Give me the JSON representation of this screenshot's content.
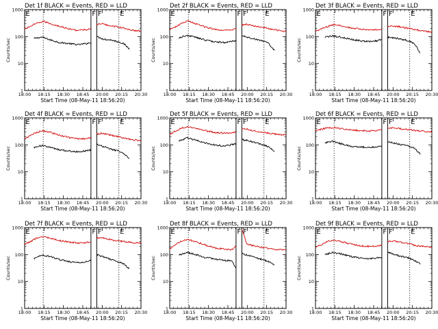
{
  "colors": {
    "events": "#000000",
    "lld": "#d20000",
    "axes": "#000000",
    "background": "#ffffff"
  },
  "chart_data": [
    {
      "type": "line",
      "title": "Det 1f BLACK = Events, RED = LLD",
      "xlabel": "Start Time (08-May-11 18:56:20)",
      "ylabel": "Counts/sec",
      "x_ticks": [
        "18:00",
        "18:15",
        "18:30",
        "18:45",
        "20:00",
        "20:15",
        "20:30"
      ],
      "y_ticks": [
        "1",
        "10",
        "100",
        "1000"
      ],
      "ylim": [
        1,
        1000
      ],
      "y_scale": "log",
      "markers": [
        {
          "label": "E",
          "x": 0.0
        },
        {
          "label": "F",
          "x": 0.57
        },
        {
          "label": "F",
          "x": 0.62
        },
        {
          "label": "E",
          "x": 0.81
        }
      ],
      "gaps": [
        0.57,
        0.62
      ],
      "series": [
        {
          "name": "Events",
          "color": "#000000",
          "x": [
            0.08,
            0.15,
            0.22,
            0.3,
            0.38,
            0.46,
            0.53,
            0.57,
            0.62,
            0.68,
            0.74,
            0.8,
            0.85,
            0.9
          ],
          "values": [
            85,
            95,
            75,
            60,
            55,
            50,
            55,
            60,
            100,
            80,
            75,
            65,
            55,
            35
          ]
        },
        {
          "name": "LLD",
          "color": "#d20000",
          "x": [
            0.0,
            0.05,
            0.1,
            0.16,
            0.22,
            0.3,
            0.38,
            0.46,
            0.53,
            0.57,
            0.62,
            0.66,
            0.72,
            0.8,
            0.88,
            0.95,
            1.0
          ],
          "values": [
            190,
            240,
            300,
            370,
            300,
            240,
            190,
            170,
            180,
            200,
            280,
            300,
            260,
            230,
            190,
            165,
            160
          ]
        }
      ]
    },
    {
      "type": "line",
      "title": "Det 2f BLACK = Events, RED = LLD",
      "xlabel": "Start Time (08-May-11 18:56:20)",
      "ylabel": "Counts/sec",
      "x_ticks": [
        "18:00",
        "18:15",
        "18:30",
        "18:45",
        "20:00",
        "20:15",
        "20:30"
      ],
      "y_ticks": [
        "1",
        "10",
        "100",
        "1000"
      ],
      "ylim": [
        1,
        1000
      ],
      "y_scale": "log",
      "markers": [
        {
          "label": "E",
          "x": 0.0
        },
        {
          "label": "F",
          "x": 0.57
        },
        {
          "label": "F",
          "x": 0.62
        },
        {
          "label": "E",
          "x": 0.81
        }
      ],
      "gaps": [
        0.57,
        0.62
      ],
      "series": [
        {
          "name": "Events",
          "color": "#000000",
          "x": [
            0.08,
            0.15,
            0.22,
            0.3,
            0.38,
            0.46,
            0.53,
            0.57,
            0.62,
            0.68,
            0.74,
            0.8,
            0.85,
            0.9
          ],
          "values": [
            90,
            110,
            95,
            75,
            65,
            60,
            65,
            70,
            110,
            90,
            80,
            70,
            55,
            30
          ]
        },
        {
          "name": "LLD",
          "color": "#d20000",
          "x": [
            0.0,
            0.05,
            0.1,
            0.16,
            0.22,
            0.3,
            0.38,
            0.46,
            0.53,
            0.57,
            0.62,
            0.66,
            0.72,
            0.8,
            0.88,
            0.95,
            1.0
          ],
          "values": [
            180,
            230,
            300,
            380,
            300,
            230,
            190,
            170,
            175,
            190,
            270,
            290,
            250,
            220,
            185,
            165,
            155
          ]
        }
      ]
    },
    {
      "type": "line",
      "title": "Det 3f BLACK = Events, RED = LLD",
      "xlabel": "Start Time (08-May-11 18:56:20)",
      "ylabel": "Counts/sec",
      "x_ticks": [
        "18:00",
        "18:15",
        "18:30",
        "18:45",
        "20:00",
        "20:15",
        "20:30"
      ],
      "y_ticks": [
        "1",
        "10",
        "100",
        "1000"
      ],
      "ylim": [
        1,
        1000
      ],
      "y_scale": "log",
      "markers": [
        {
          "label": "E",
          "x": 0.0
        },
        {
          "label": "F",
          "x": 0.57
        },
        {
          "label": "F",
          "x": 0.62
        },
        {
          "label": "E",
          "x": 0.81
        }
      ],
      "gaps": [
        0.57,
        0.62
      ],
      "series": [
        {
          "name": "Events",
          "color": "#000000",
          "x": [
            0.08,
            0.15,
            0.22,
            0.3,
            0.38,
            0.46,
            0.53,
            0.57,
            0.62,
            0.68,
            0.74,
            0.8,
            0.85,
            0.9
          ],
          "values": [
            95,
            105,
            95,
            80,
            70,
            65,
            70,
            80,
            95,
            90,
            80,
            70,
            55,
            25
          ]
        },
        {
          "name": "LLD",
          "color": "#d20000",
          "x": [
            0.0,
            0.05,
            0.1,
            0.16,
            0.22,
            0.3,
            0.38,
            0.46,
            0.53,
            0.57,
            0.62,
            0.66,
            0.72,
            0.8,
            0.88,
            0.95,
            1.0
          ],
          "values": [
            160,
            190,
            230,
            280,
            250,
            210,
            190,
            175,
            180,
            190,
            230,
            250,
            230,
            200,
            175,
            155,
            150
          ]
        }
      ]
    },
    {
      "type": "line",
      "title": "Det 4f BLACK = Events, RED = LLD",
      "xlabel": "Start Time (08-May-11 18:56:20)",
      "ylabel": "Counts/sec",
      "x_ticks": [
        "18:00",
        "18:15",
        "18:30",
        "18:45",
        "20:00",
        "20:15",
        "20:30"
      ],
      "y_ticks": [
        "1",
        "10",
        "100",
        "1000"
      ],
      "ylim": [
        1,
        1000
      ],
      "y_scale": "log",
      "markers": [
        {
          "label": "E",
          "x": 0.0
        },
        {
          "label": "F",
          "x": 0.57
        },
        {
          "label": "F",
          "x": 0.62
        },
        {
          "label": "E",
          "x": 0.81
        }
      ],
      "gaps": [
        0.57,
        0.62
      ],
      "series": [
        {
          "name": "Events",
          "color": "#000000",
          "x": [
            0.08,
            0.15,
            0.22,
            0.3,
            0.38,
            0.46,
            0.53,
            0.57,
            0.62,
            0.68,
            0.74,
            0.8,
            0.85,
            0.9
          ],
          "values": [
            80,
            95,
            80,
            65,
            60,
            55,
            60,
            65,
            105,
            85,
            70,
            60,
            50,
            30
          ]
        },
        {
          "name": "LLD",
          "color": "#d20000",
          "x": [
            0.0,
            0.05,
            0.1,
            0.16,
            0.22,
            0.3,
            0.38,
            0.46,
            0.53,
            0.57,
            0.62,
            0.66,
            0.72,
            0.8,
            0.88,
            0.95,
            1.0
          ],
          "values": [
            170,
            220,
            290,
            330,
            290,
            230,
            185,
            165,
            170,
            185,
            250,
            270,
            240,
            200,
            170,
            150,
            140
          ]
        }
      ]
    },
    {
      "type": "line",
      "title": "Det 5f BLACK = Events, RED = LLD",
      "xlabel": "Start Time (08-May-11 18:56:20)",
      "ylabel": "Counts/sec",
      "x_ticks": [
        "18:00",
        "18:15",
        "18:30",
        "18:45",
        "20:00",
        "20:15",
        "20:30"
      ],
      "y_ticks": [
        "1",
        "10",
        "100",
        "1000"
      ],
      "ylim": [
        1,
        1000
      ],
      "y_scale": "log",
      "markers": [
        {
          "label": "E",
          "x": 0.0
        },
        {
          "label": "F",
          "x": 0.57
        },
        {
          "label": "F",
          "x": 0.62
        },
        {
          "label": "E",
          "x": 0.81
        }
      ],
      "gaps": [
        0.57,
        0.62
      ],
      "series": [
        {
          "name": "Events",
          "color": "#000000",
          "x": [
            0.08,
            0.15,
            0.22,
            0.3,
            0.38,
            0.46,
            0.53,
            0.57,
            0.62,
            0.68,
            0.74,
            0.8,
            0.85,
            0.9
          ],
          "values": [
            140,
            180,
            150,
            120,
            100,
            90,
            100,
            110,
            160,
            140,
            120,
            100,
            85,
            55
          ]
        },
        {
          "name": "LLD",
          "color": "#d20000",
          "x": [
            0.0,
            0.05,
            0.1,
            0.16,
            0.22,
            0.3,
            0.38,
            0.46,
            0.53,
            0.57,
            0.62,
            0.66,
            0.72,
            0.8,
            0.88,
            0.95,
            1.0
          ],
          "values": [
            250,
            320,
            420,
            480,
            420,
            340,
            290,
            270,
            280,
            300,
            380,
            390,
            330,
            290,
            260,
            240,
            230
          ]
        }
      ]
    },
    {
      "type": "line",
      "title": "Det 6f BLACK = Events, RED = LLD",
      "xlabel": "Start Time (08-May-11 18:56:20)",
      "ylabel": "Counts/sec",
      "x_ticks": [
        "18:00",
        "18:15",
        "18:30",
        "18:45",
        "20:00",
        "20:15",
        "20:30"
      ],
      "y_ticks": [
        "1",
        "10",
        "100",
        "1000"
      ],
      "ylim": [
        1,
        1000
      ],
      "y_scale": "log",
      "markers": [
        {
          "label": "E",
          "x": 0.0
        },
        {
          "label": "F",
          "x": 0.57
        },
        {
          "label": "F",
          "x": 0.62
        },
        {
          "label": "E",
          "x": 0.81
        }
      ],
      "gaps": [
        0.57,
        0.62
      ],
      "series": [
        {
          "name": "Events",
          "color": "#000000",
          "x": [
            0.08,
            0.15,
            0.22,
            0.3,
            0.38,
            0.46,
            0.53,
            0.57,
            0.62,
            0.68,
            0.74,
            0.8,
            0.85,
            0.9
          ],
          "values": [
            120,
            135,
            110,
            90,
            85,
            80,
            85,
            90,
            130,
            115,
            100,
            90,
            75,
            45
          ]
        },
        {
          "name": "LLD",
          "color": "#d20000",
          "x": [
            0.0,
            0.05,
            0.1,
            0.16,
            0.22,
            0.3,
            0.38,
            0.46,
            0.53,
            0.57,
            0.62,
            0.66,
            0.72,
            0.8,
            0.88,
            0.95,
            1.0
          ],
          "values": [
            330,
            380,
            420,
            440,
            400,
            360,
            340,
            330,
            340,
            360,
            420,
            430,
            400,
            370,
            330,
            310,
            305
          ]
        }
      ]
    },
    {
      "type": "line",
      "title": "Det 7f BLACK = Events, RED = LLD",
      "xlabel": "Start Time (08-May-11 18:56:20)",
      "ylabel": "Counts/sec",
      "x_ticks": [
        "18:00",
        "18:15",
        "18:30",
        "18:45",
        "20:00",
        "20:15",
        "20:30"
      ],
      "y_ticks": [
        "1",
        "10",
        "100",
        "1000"
      ],
      "ylim": [
        1,
        1000
      ],
      "y_scale": "log",
      "markers": [
        {
          "label": "E",
          "x": 0.0
        },
        {
          "label": "F",
          "x": 0.57
        },
        {
          "label": "F",
          "x": 0.62
        },
        {
          "label": "E",
          "x": 0.81
        }
      ],
      "gaps": [
        0.57,
        0.62
      ],
      "series": [
        {
          "name": "Events",
          "color": "#000000",
          "x": [
            0.08,
            0.15,
            0.22,
            0.3,
            0.38,
            0.46,
            0.53,
            0.57,
            0.62,
            0.68,
            0.74,
            0.8,
            0.85,
            0.9
          ],
          "values": [
            70,
            95,
            85,
            65,
            55,
            50,
            55,
            60,
            100,
            80,
            65,
            55,
            45,
            30
          ]
        },
        {
          "name": "LLD",
          "color": "#d20000",
          "x": [
            0.0,
            0.05,
            0.1,
            0.16,
            0.22,
            0.3,
            0.38,
            0.46,
            0.53,
            0.57,
            0.62,
            0.66,
            0.72,
            0.8,
            0.88,
            0.95,
            1.0
          ],
          "values": [
            240,
            300,
            400,
            450,
            400,
            330,
            290,
            270,
            280,
            300,
            400,
            420,
            370,
            320,
            290,
            270,
            260
          ]
        }
      ]
    },
    {
      "type": "line",
      "title": "Det 8f BLACK = Events, RED = LLD",
      "xlabel": "Start Time (08-May-11 18:56:20)",
      "ylabel": "Counts/sec",
      "x_ticks": [
        "18:00",
        "18:15",
        "18:30",
        "18:45",
        "20:00",
        "20:15",
        "20:30"
      ],
      "y_ticks": [
        "1",
        "10",
        "100",
        "1000"
      ],
      "ylim": [
        1,
        1000
      ],
      "y_scale": "log",
      "markers": [
        {
          "label": "E",
          "x": 0.0
        },
        {
          "label": "F",
          "x": 0.57
        },
        {
          "label": "F",
          "x": 0.62
        },
        {
          "label": "E",
          "x": 0.81
        }
      ],
      "gaps": [
        0.57,
        0.62
      ],
      "series": [
        {
          "name": "Events",
          "color": "#000000",
          "x": [
            0.08,
            0.15,
            0.22,
            0.3,
            0.38,
            0.46,
            0.53,
            0.57,
            0.62,
            0.68,
            0.74,
            0.8,
            0.85,
            0.9
          ],
          "values": [
            95,
            120,
            100,
            80,
            70,
            60,
            60,
            30,
            110,
            90,
            75,
            65,
            55,
            40
          ]
        },
        {
          "name": "LLD",
          "color": "#d20000",
          "x": [
            0.0,
            0.05,
            0.1,
            0.16,
            0.22,
            0.3,
            0.38,
            0.46,
            0.53,
            0.57,
            0.62,
            0.66,
            0.72,
            0.8,
            0.88,
            0.95,
            1.0
          ],
          "values": [
            160,
            230,
            320,
            360,
            300,
            230,
            180,
            160,
            150,
            200,
            900,
            250,
            210,
            180,
            160,
            150,
            150
          ]
        }
      ]
    },
    {
      "type": "line",
      "title": "Det 9f BLACK = Events, RED = LLD",
      "xlabel": "Start Time (08-May-11 18:56:20)",
      "ylabel": "Counts/sec",
      "x_ticks": [
        "18:00",
        "18:15",
        "18:30",
        "18:45",
        "20:00",
        "20:15",
        "20:30"
      ],
      "y_ticks": [
        "1",
        "10",
        "100",
        "1000"
      ],
      "ylim": [
        1,
        1000
      ],
      "y_scale": "log",
      "markers": [
        {
          "label": "E",
          "x": 0.0
        },
        {
          "label": "F",
          "x": 0.57
        },
        {
          "label": "F",
          "x": 0.62
        },
        {
          "label": "E",
          "x": 0.81
        }
      ],
      "gaps": [
        0.57,
        0.62
      ],
      "series": [
        {
          "name": "Events",
          "color": "#000000",
          "x": [
            0.08,
            0.15,
            0.22,
            0.3,
            0.38,
            0.46,
            0.53,
            0.57,
            0.62,
            0.68,
            0.74,
            0.8,
            0.85,
            0.9
          ],
          "values": [
            100,
            120,
            105,
            85,
            75,
            70,
            75,
            80,
            120,
            100,
            85,
            75,
            60,
            45
          ]
        },
        {
          "name": "LLD",
          "color": "#d20000",
          "x": [
            0.0,
            0.05,
            0.1,
            0.16,
            0.22,
            0.3,
            0.38,
            0.46,
            0.53,
            0.57,
            0.62,
            0.66,
            0.72,
            0.8,
            0.88,
            0.95,
            1.0
          ],
          "values": [
            180,
            230,
            300,
            350,
            300,
            250,
            210,
            200,
            210,
            230,
            300,
            320,
            290,
            250,
            210,
            195,
            190
          ]
        }
      ]
    }
  ]
}
